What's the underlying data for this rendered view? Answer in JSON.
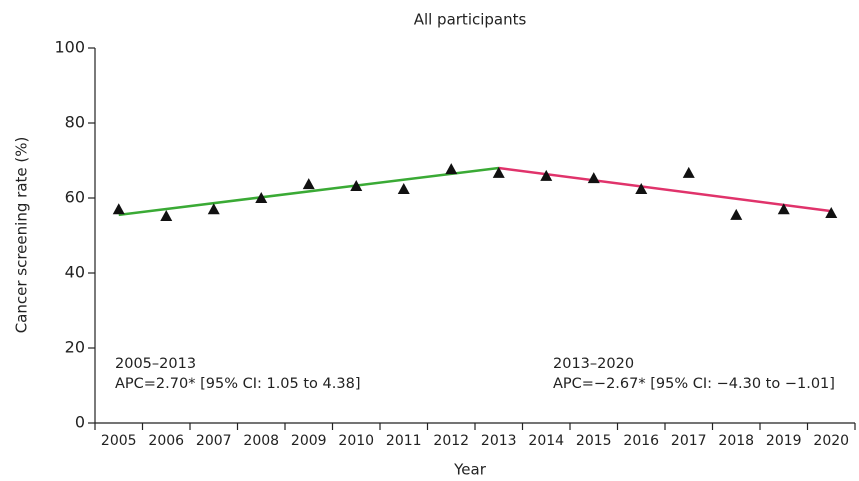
{
  "chart_data": {
    "type": "scatter",
    "title": "All participants",
    "x_label": "Year",
    "y_label": "Cancer screening rate (%)",
    "categories": [
      "2005",
      "2006",
      "2007",
      "2008",
      "2009",
      "2010",
      "2011",
      "2012",
      "2013",
      "2014",
      "2015",
      "2016",
      "2017",
      "2018",
      "2019",
      "2020"
    ],
    "series": [
      {
        "color": "#111111",
        "values": [
          57,
          55.2,
          57,
          60,
          63.7,
          63.2,
          62.4,
          67.7,
          66.7,
          65.9,
          65.3,
          62.4,
          66.7,
          55.5,
          57,
          56
        ]
      }
    ],
    "trend_lines": [
      {
        "color": "#3aaa35",
        "x": [
          "2005",
          "2013"
        ],
        "values": [
          55.5,
          68
        ]
      },
      {
        "color": "#e0336b",
        "x": [
          "2013",
          "2020"
        ],
        "values": [
          68,
          56.5
        ]
      }
    ],
    "annotations": [
      {
        "lines": [
          "2005–2013",
          "APC=2.70* [95% CI: 1.05 to 4.38]"
        ]
      },
      {
        "lines": [
          "2013–2020",
          "APC=−2.67* [95% CI: −4.30 to −1.01]"
        ]
      }
    ],
    "ylim": [
      0,
      100
    ],
    "yticks": [
      0,
      20,
      40,
      60,
      80,
      100
    ]
  }
}
